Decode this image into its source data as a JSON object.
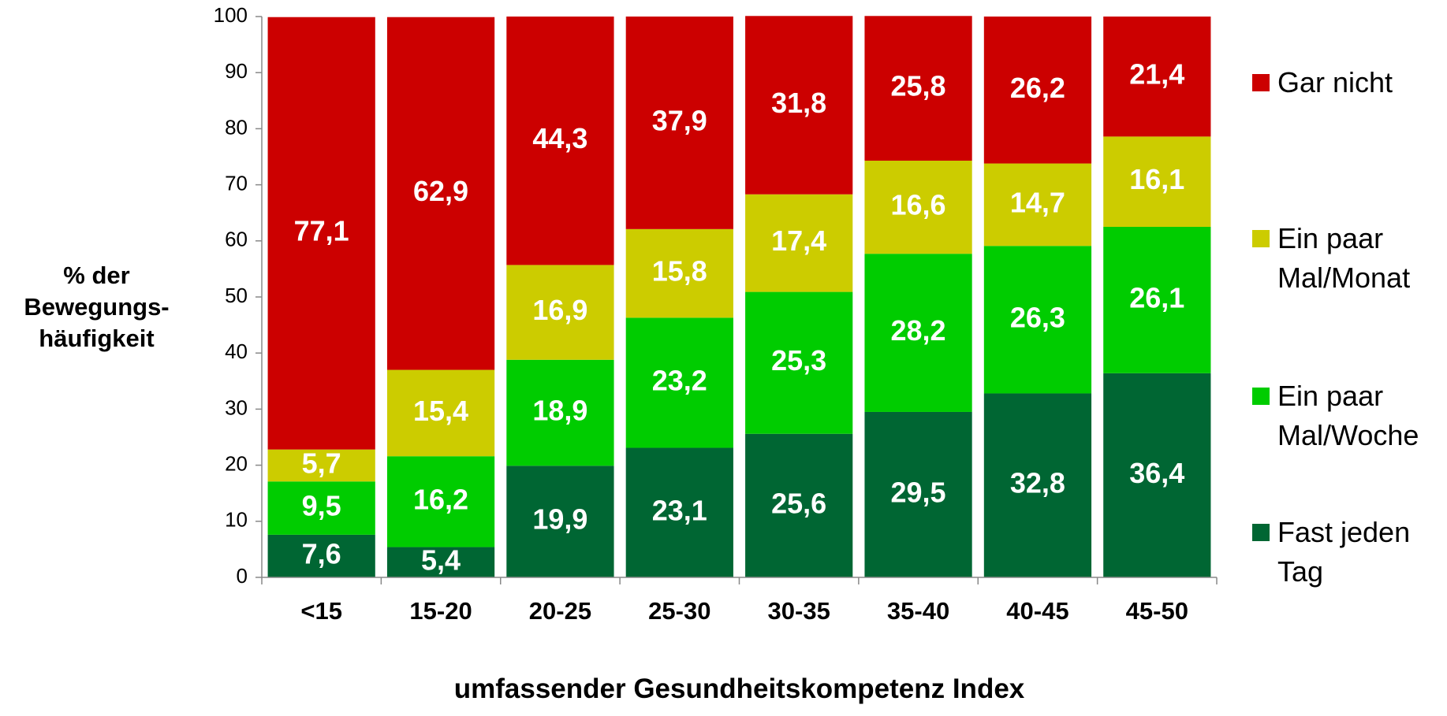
{
  "chart_data": {
    "type": "stacked_bar",
    "y_label": "% der Bewegungs-häufigkeit",
    "x_label": "umfassender Gesundheitskompetenz Index",
    "categories": [
      "<15",
      "15-20",
      "20-25",
      "25-30",
      "30-35",
      "35-40",
      "40-45",
      "45-50"
    ],
    "series": [
      {
        "name": "Fast jeden Tag",
        "color": "#006633",
        "values": [
          7.6,
          5.4,
          19.9,
          23.1,
          25.6,
          29.5,
          32.8,
          36.4
        ],
        "value_labels": [
          "7,6",
          "5,4",
          "19,9",
          "23,1",
          "25,6",
          "29,5",
          "32,8",
          "36,4"
        ]
      },
      {
        "name": "Ein paar Mal/Woche",
        "color": "#00cc00",
        "values": [
          9.5,
          16.2,
          18.9,
          23.2,
          25.3,
          28.2,
          26.3,
          26.1
        ],
        "value_labels": [
          "9,5",
          "16,2",
          "18,9",
          "23,2",
          "25,3",
          "28,2",
          "26,3",
          "26,1"
        ]
      },
      {
        "name": "Ein paar Mal/Monat",
        "color": "#cccc00",
        "values": [
          5.7,
          15.4,
          16.9,
          15.8,
          17.4,
          16.6,
          14.7,
          16.1
        ],
        "value_labels": [
          "5,7",
          "15,4",
          "16,9",
          "15,8",
          "17,4",
          "16,6",
          "14,7",
          "16,1"
        ]
      },
      {
        "name": "Gar nicht",
        "color": "#cc0000",
        "values": [
          77.1,
          62.9,
          44.3,
          37.9,
          31.8,
          25.8,
          26.2,
          21.4
        ],
        "value_labels": [
          "77,1",
          "62,9",
          "44,3",
          "37,9",
          "31,8",
          "25,8",
          "26,2",
          "21,4"
        ]
      }
    ],
    "ylim": [
      0,
      100
    ],
    "yticks": [
      0,
      10,
      20,
      30,
      40,
      50,
      60,
      70,
      80,
      90,
      100
    ],
    "legend": "right"
  }
}
